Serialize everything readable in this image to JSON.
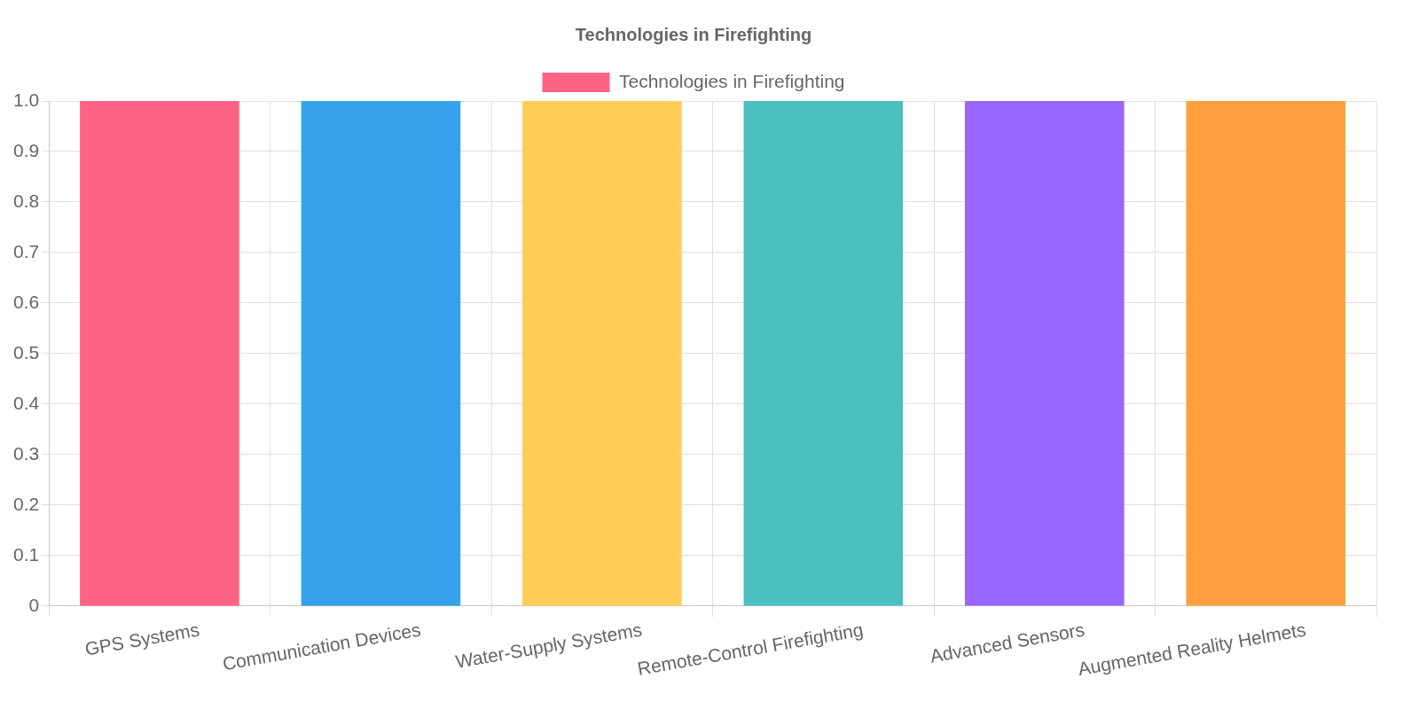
{
  "chart_data": {
    "type": "bar",
    "title": "Technologies in Firefighting",
    "categories": [
      "GPS Systems",
      "Communication Devices",
      "Water-Supply Systems",
      "Remote-Control Firefighting",
      "Advanced Sensors",
      "Augmented Reality Helmets"
    ],
    "series": [
      {
        "name": "Technologies in Firefighting",
        "colors": [
          "#ff6384",
          "#36a2eb",
          "#ffcd56",
          "#4bc0c0",
          "#9966ff",
          "#ff9f40"
        ],
        "values": [
          1,
          1,
          1,
          1,
          1,
          1
        ]
      }
    ],
    "ylim": [
      0,
      1
    ],
    "yticks": [
      0,
      0.1,
      0.2,
      0.3,
      0.4,
      0.5,
      0.6,
      0.7,
      0.8,
      0.9,
      {
        "value": 1,
        "label": "1.0"
      }
    ],
    "grid": true,
    "legend": "top"
  }
}
